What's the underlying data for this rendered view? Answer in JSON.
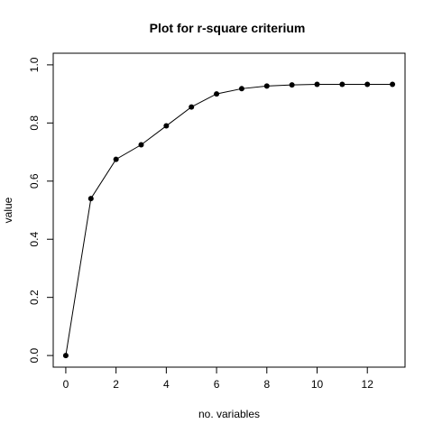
{
  "chart_data": {
    "type": "line",
    "title": "Plot for r-square criterium",
    "xlabel": "no. variables",
    "ylabel": "value",
    "xlim": [
      -0.5,
      13.5
    ],
    "ylim": [
      -0.04,
      1.04
    ],
    "x_ticks": [
      "0",
      "2",
      "4",
      "6",
      "8",
      "10",
      "12"
    ],
    "y_ticks": [
      "0.0",
      "0.2",
      "0.4",
      "0.6",
      "0.8",
      "1.0"
    ],
    "grid": false,
    "legend": "none",
    "series": [
      {
        "x": [
          0,
          1,
          2,
          3,
          4,
          5,
          6,
          7,
          8,
          9,
          10,
          11,
          12,
          13
        ],
        "values": [
          0.0,
          0.54,
          0.675,
          0.725,
          0.79,
          0.855,
          0.9,
          0.918,
          0.927,
          0.931,
          0.933,
          0.933,
          0.933,
          0.933
        ]
      }
    ],
    "color": "#000000"
  }
}
